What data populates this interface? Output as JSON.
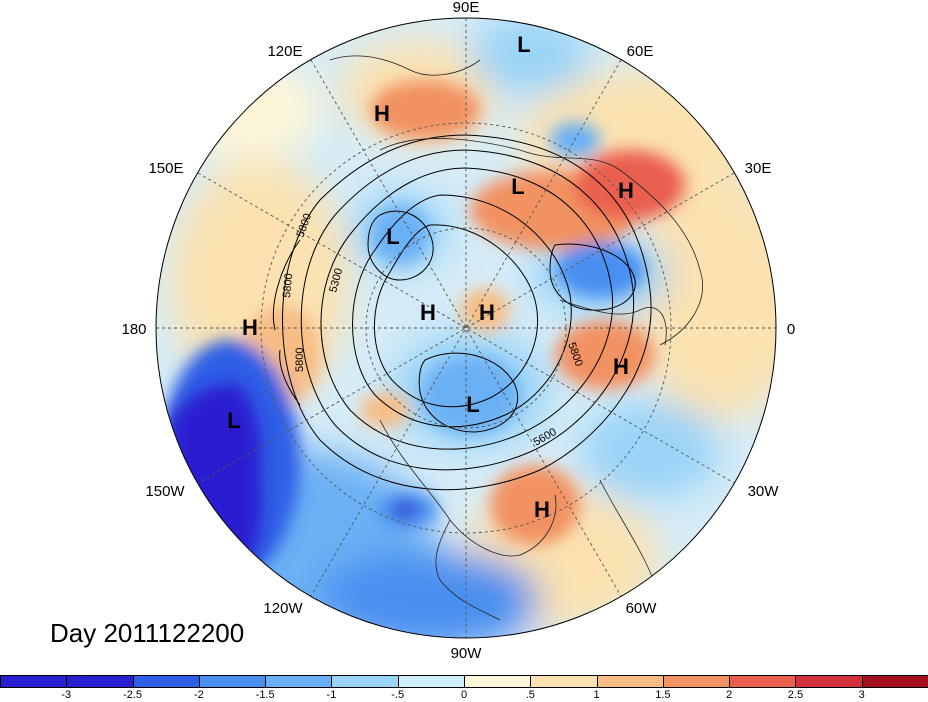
{
  "title": "Day 2011122200",
  "map": {
    "projection": "north-polar-stereographic",
    "center_pole_label_hidden": true,
    "graticule_style": "dashed",
    "longitude_labels": [
      "90E",
      "60E",
      "30E",
      "0",
      "30W",
      "60W",
      "90W",
      "120W",
      "150W",
      "180",
      "150E",
      "120E"
    ],
    "contour_labels": [
      "5800",
      "5800",
      "5800",
      "5800",
      "5300",
      "5600"
    ],
    "centers": [
      {
        "label": "L"
      },
      {
        "label": "H"
      },
      {
        "label": "L"
      },
      {
        "label": "H"
      },
      {
        "label": "L"
      },
      {
        "label": "H"
      },
      {
        "label": "H"
      },
      {
        "label": "H"
      },
      {
        "label": "L"
      },
      {
        "label": "H"
      },
      {
        "label": "L"
      },
      {
        "label": "H"
      }
    ]
  },
  "colorbar": {
    "ticks": [
      "-3",
      "-2.5",
      "-2",
      "-1.5",
      "-1",
      "-.5",
      "0",
      ".5",
      "1",
      "1.5",
      "2",
      "2.5",
      "3"
    ],
    "colors": [
      "#2a1fd0",
      "#2f5fe6",
      "#4a8ff0",
      "#6ab0f4",
      "#9ad4f8",
      "#cdeefc",
      "#fdf6d8",
      "#fbe2b0",
      "#f8bd86",
      "#f29262",
      "#ea5f4e",
      "#d2303a",
      "#a5101e"
    ]
  },
  "colors": {
    "strong_negative": "#2a1fd0",
    "negative": "#6ab0f4",
    "neutral": "#fdf6d8",
    "positive": "#f29262",
    "strong_positive": "#d2303a"
  }
}
